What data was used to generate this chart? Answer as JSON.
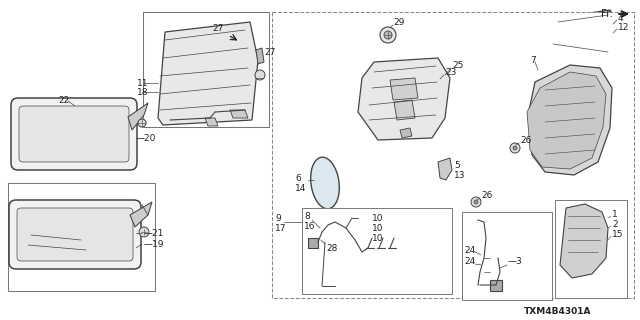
{
  "bg_color": "#ffffff",
  "line_color": "#444444",
  "text_color": "#222222",
  "diagram_id": "TXM4B4301A",
  "fig_width": 6.4,
  "fig_height": 3.2,
  "dpi": 100,
  "labels": {
    "fr": "Fr.",
    "p1": "1",
    "p2": "2",
    "p3": "3",
    "p4": "4",
    "p5": "5",
    "p6": "6",
    "p7": "7",
    "p8": "8",
    "p9": "9",
    "p10": "10",
    "p11": "11",
    "p12": "12",
    "p13": "13",
    "p14": "14",
    "p15": "15",
    "p16": "16",
    "p17": "17",
    "p18": "18",
    "p19": "19",
    "p20": "20",
    "p21": "21",
    "p22": "22",
    "p23": "23",
    "p24": "24",
    "p25": "25",
    "p26": "26",
    "p27": "27",
    "p28": "28",
    "p29": "29"
  }
}
